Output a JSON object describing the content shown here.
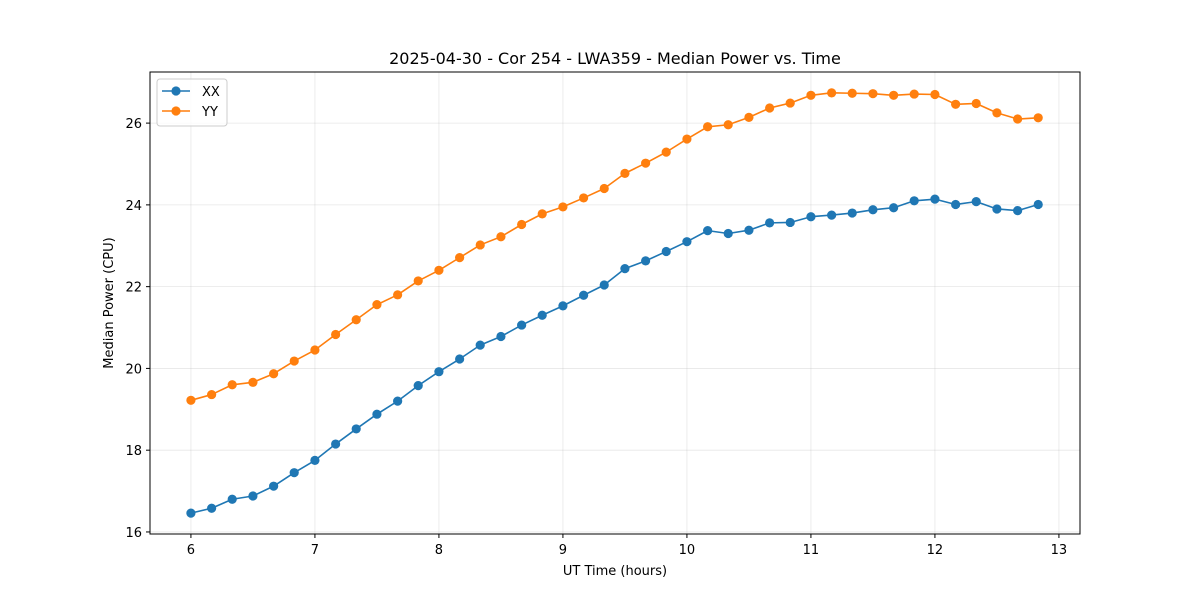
{
  "chart_data": {
    "type": "line",
    "title": "2025-04-30 - Cor 254 - LWA359 - Median Power vs. Time",
    "xlabel": "UT Time (hours)",
    "ylabel": "Median Power (CPU)",
    "xlim": [
      5.67,
      13.17
    ],
    "ylim": [
      15.95,
      27.25
    ],
    "xticks": [
      6,
      7,
      8,
      9,
      10,
      11,
      12,
      13
    ],
    "yticks": [
      16,
      18,
      20,
      22,
      24,
      26
    ],
    "grid": true,
    "legend_position": "top-left",
    "x": [
      6.0,
      6.167,
      6.333,
      6.5,
      6.667,
      6.833,
      7.0,
      7.167,
      7.333,
      7.5,
      7.667,
      7.833,
      8.0,
      8.167,
      8.333,
      8.5,
      8.667,
      8.833,
      9.0,
      9.167,
      9.333,
      9.5,
      9.667,
      9.833,
      10.0,
      10.167,
      10.333,
      10.5,
      10.667,
      10.833,
      11.0,
      11.167,
      11.333,
      11.5,
      11.667,
      11.833,
      12.0,
      12.167,
      12.333,
      12.5,
      12.667,
      12.833
    ],
    "series": [
      {
        "name": "XX",
        "color": "#1f77b4",
        "values": [
          16.46,
          16.58,
          16.8,
          16.88,
          17.12,
          17.45,
          17.75,
          18.15,
          18.52,
          18.88,
          19.2,
          19.58,
          19.92,
          20.23,
          20.57,
          20.78,
          21.06,
          21.3,
          21.53,
          21.79,
          22.04,
          22.44,
          22.63,
          22.86,
          23.1,
          23.37,
          23.3,
          23.38,
          23.56,
          23.57,
          23.71,
          23.75,
          23.8,
          23.88,
          23.93,
          24.1,
          24.14,
          24.01,
          24.08,
          23.9,
          23.86,
          24.01
        ]
      },
      {
        "name": "YY",
        "color": "#ff7f0e",
        "values": [
          19.22,
          19.36,
          19.6,
          19.66,
          19.87,
          20.18,
          20.45,
          20.83,
          21.19,
          21.56,
          21.8,
          22.14,
          22.4,
          22.71,
          23.02,
          23.22,
          23.52,
          23.78,
          23.95,
          24.17,
          24.4,
          24.77,
          25.02,
          25.29,
          25.61,
          25.91,
          25.96,
          26.14,
          26.37,
          26.49,
          26.68,
          26.74,
          26.73,
          26.72,
          26.68,
          26.71,
          26.7,
          26.46,
          26.48,
          26.25,
          26.1,
          26.13
        ]
      }
    ]
  }
}
